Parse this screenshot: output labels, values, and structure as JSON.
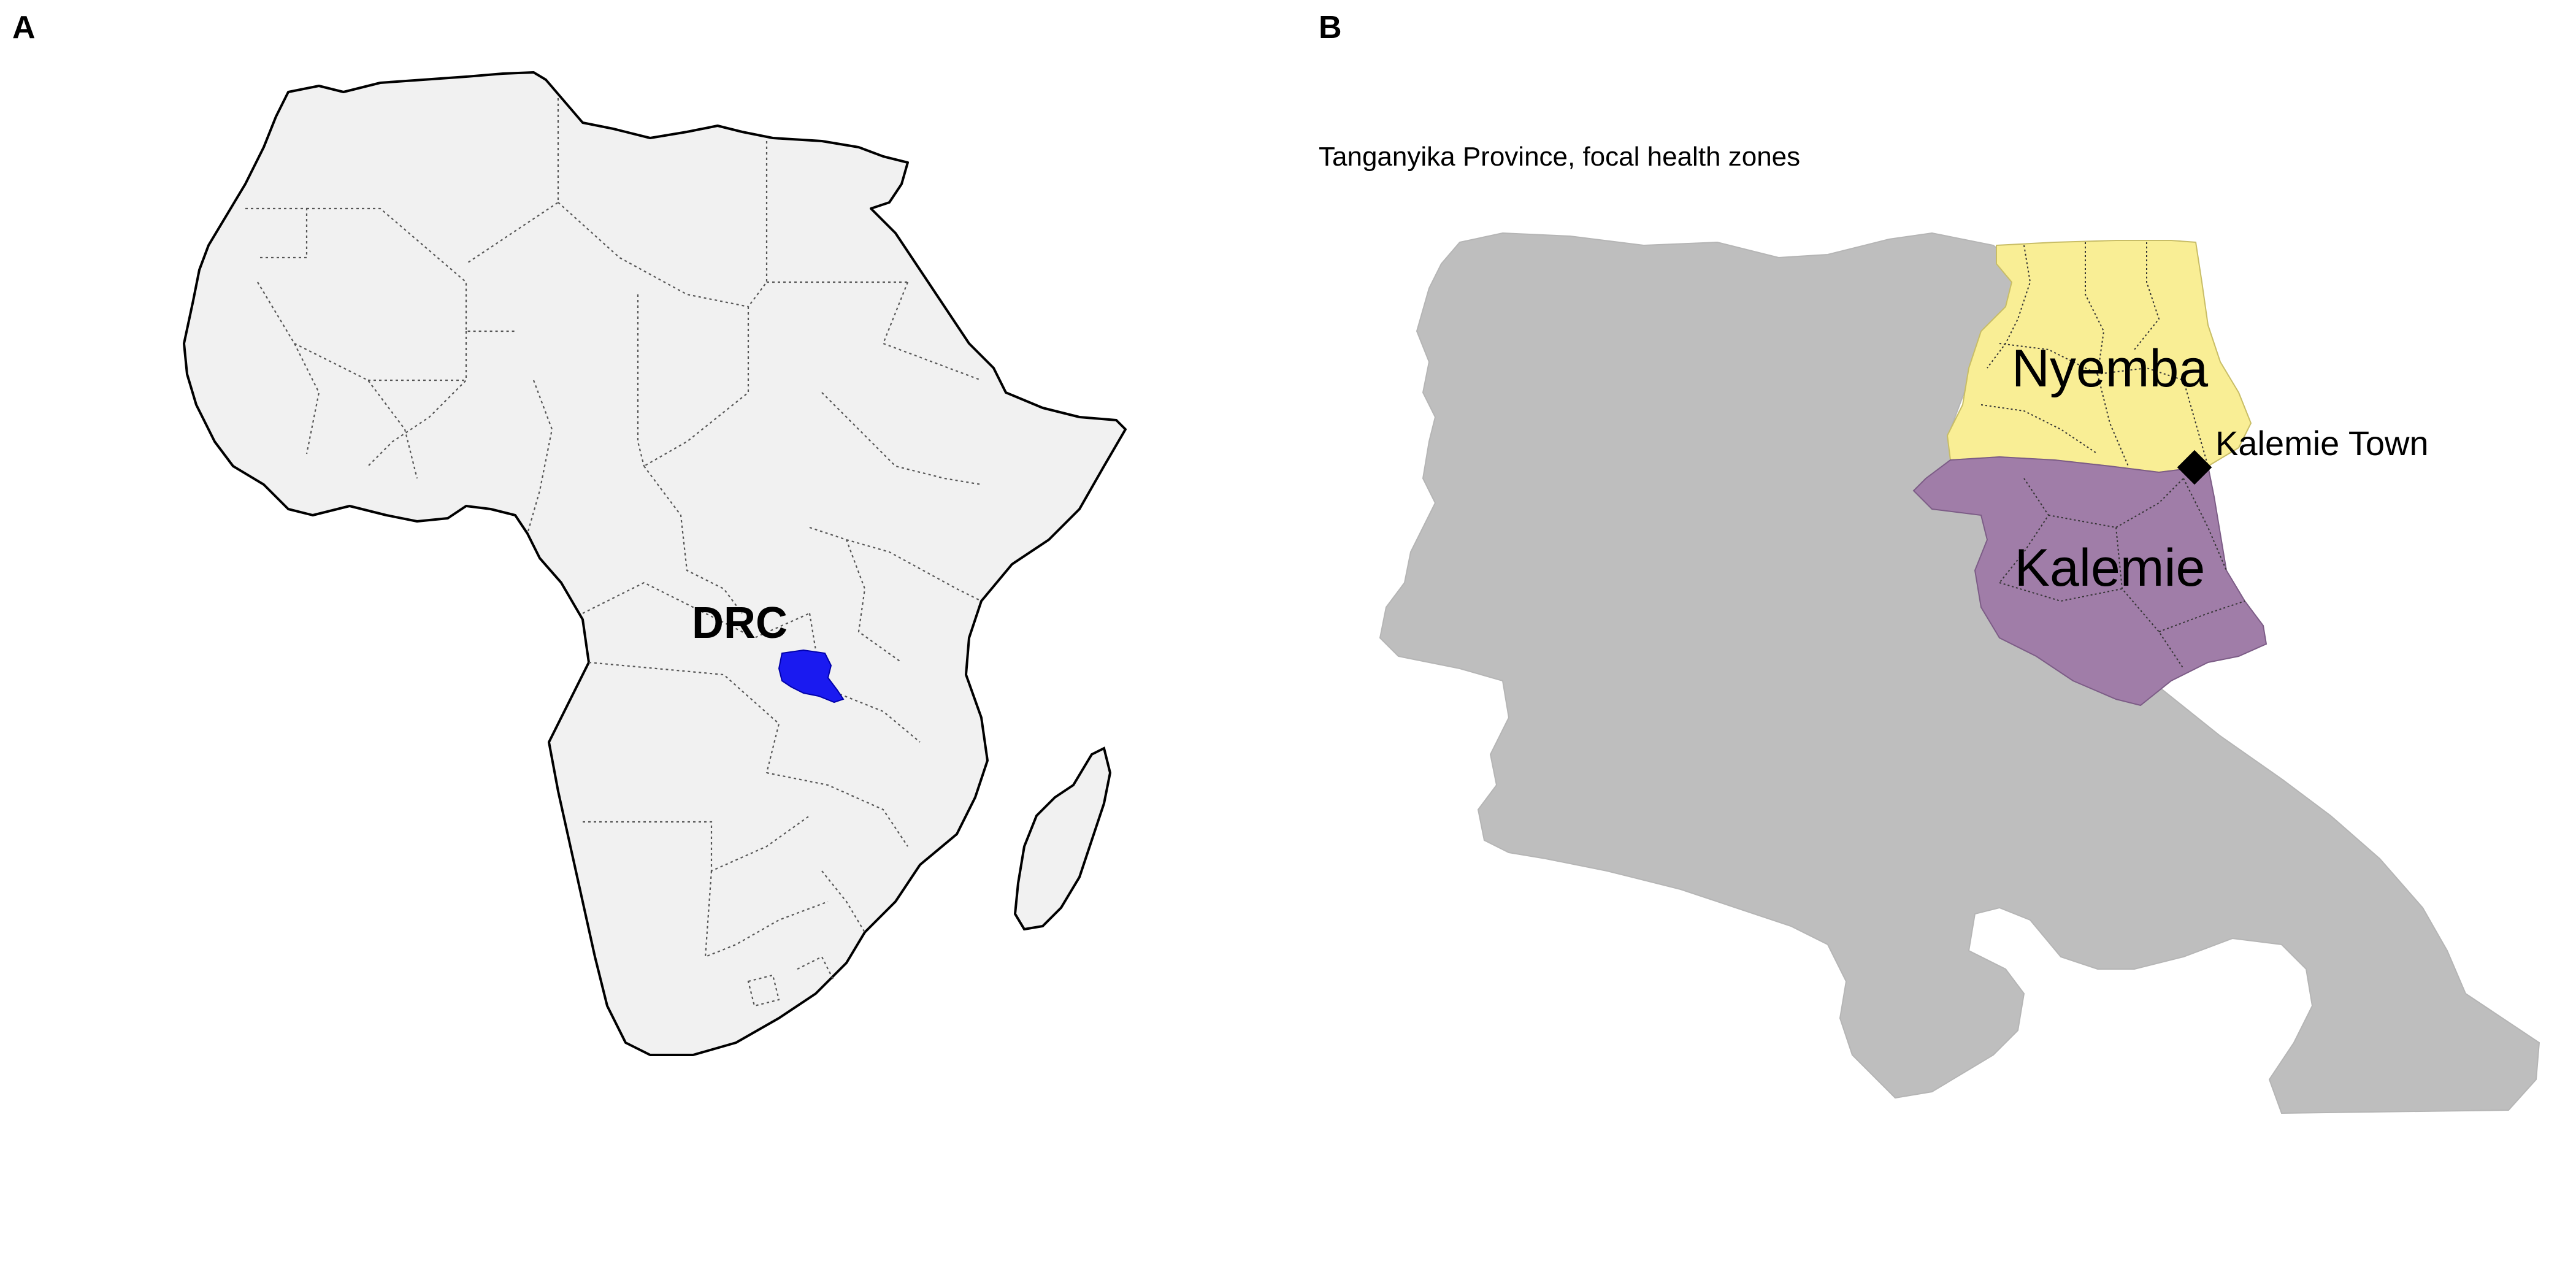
{
  "panel_a": {
    "letter": "A",
    "country_label": "DRC",
    "colors": {
      "land": "#f1f1f1",
      "coast": "#000000",
      "highlight": "#1a1af0"
    }
  },
  "panel_b": {
    "letter": "B",
    "subtitle": "Tanganyika Province, focal health zones",
    "zones": [
      {
        "name": "Nyemba",
        "color": "#f9ee95"
      },
      {
        "name": "Kalemie",
        "color": "#a07da8"
      }
    ],
    "province_color": "#bebebe",
    "town": {
      "name": "Kalemie Town",
      "marker": "diamond-marker-icon"
    }
  }
}
